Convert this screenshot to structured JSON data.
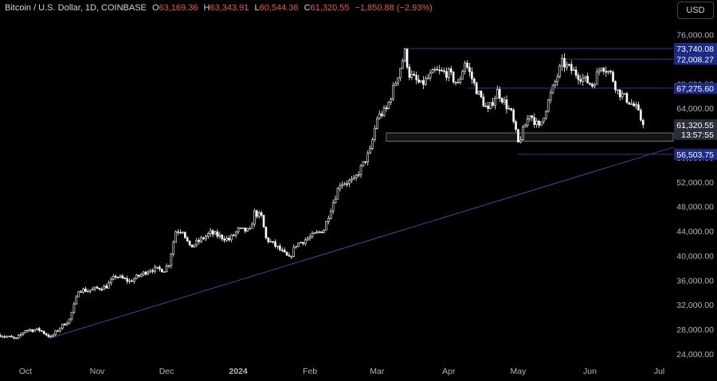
{
  "header": {
    "symbol": "Bitcoin / U.S. Dollar, 1D, COINBASE",
    "o_label": "O",
    "o_value": "63,169.36",
    "h_label": "H",
    "h_value": "63,343.91",
    "l_label": "L",
    "l_value": "60,544.36",
    "c_label": "C",
    "c_value": "61,320.55",
    "change": "−1,850.88 (−2.93%)"
  },
  "currency_button": "USD",
  "chart_data": {
    "type": "candlestick",
    "title": "Bitcoin / U.S. Dollar, 1D, COINBASE",
    "y_axis": {
      "side": "right",
      "ticks": [
        24000,
        28000,
        32000,
        36000,
        40000,
        44000,
        48000,
        52000,
        56000,
        60000,
        64000,
        68000,
        72000,
        76000
      ],
      "tick_labels": [
        "24,000.00",
        "28,000.00",
        "32,000.00",
        "36,000.00",
        "40,000.00",
        "44,000.00",
        "48,000.00",
        "52,000.00",
        "56,000.00",
        "60,000.00",
        "64,000.00",
        "68,000.00",
        "72,000.00",
        "76,000.00"
      ],
      "range": [
        22300,
        78800
      ]
    },
    "x_axis": {
      "range": [
        "2023-09-20",
        "2024-07-07"
      ],
      "ticks": [
        {
          "date": "2023-10-01",
          "label": "Oct",
          "bold": false
        },
        {
          "date": "2023-11-01",
          "label": "Nov",
          "bold": false
        },
        {
          "date": "2023-12-01",
          "label": "Dec",
          "bold": false
        },
        {
          "date": "2024-01-01",
          "label": "2024",
          "bold": true
        },
        {
          "date": "2024-02-01",
          "label": "Feb",
          "bold": false
        },
        {
          "date": "2024-03-01",
          "label": "Mar",
          "bold": false
        },
        {
          "date": "2024-04-01",
          "label": "Apr",
          "bold": false
        },
        {
          "date": "2024-05-01",
          "label": "May",
          "bold": false
        },
        {
          "date": "2024-06-01",
          "label": "Jun",
          "bold": false
        },
        {
          "date": "2024-07-01",
          "label": "Jul",
          "bold": false
        }
      ]
    },
    "price_path": [
      [
        "2023-09-20",
        27100
      ],
      [
        "2023-09-27",
        26400
      ],
      [
        "2023-10-01",
        27900
      ],
      [
        "2023-10-07",
        27900
      ],
      [
        "2023-10-12",
        26700
      ],
      [
        "2023-10-16",
        28300
      ],
      [
        "2023-10-20",
        29600
      ],
      [
        "2023-10-23",
        33000
      ],
      [
        "2023-10-24",
        34500
      ],
      [
        "2023-10-28",
        34300
      ],
      [
        "2023-11-05",
        35000
      ],
      [
        "2023-11-09",
        36700
      ],
      [
        "2023-11-15",
        35800
      ],
      [
        "2023-11-24",
        37800
      ],
      [
        "2023-11-30",
        37700
      ],
      [
        "2023-12-02",
        38700
      ],
      [
        "2023-12-05",
        44000
      ],
      [
        "2023-12-08",
        44200
      ],
      [
        "2023-12-11",
        41300
      ],
      [
        "2023-12-20",
        43700
      ],
      [
        "2023-12-28",
        42600
      ],
      [
        "2024-01-01",
        44200
      ],
      [
        "2024-01-06",
        44000
      ],
      [
        "2024-01-08",
        47000
      ],
      [
        "2024-01-11",
        46300
      ],
      [
        "2024-01-13",
        42800
      ],
      [
        "2024-01-18",
        41300
      ],
      [
        "2024-01-23",
        39500
      ],
      [
        "2024-01-26",
        41800
      ],
      [
        "2024-02-01",
        43000
      ],
      [
        "2024-02-07",
        44300
      ],
      [
        "2024-02-10",
        47700
      ],
      [
        "2024-02-14",
        51800
      ],
      [
        "2024-02-20",
        52200
      ],
      [
        "2024-02-27",
        57000
      ],
      [
        "2024-03-01",
        62500
      ],
      [
        "2024-03-05",
        63800
      ],
      [
        "2024-03-09",
        68300
      ],
      [
        "2024-03-13",
        73100
      ],
      [
        "2024-03-15",
        69500
      ],
      [
        "2024-03-20",
        67800
      ],
      [
        "2024-03-26",
        70000
      ],
      [
        "2024-04-01",
        69700
      ],
      [
        "2024-04-05",
        67800
      ],
      [
        "2024-04-08",
        71600
      ],
      [
        "2024-04-13",
        67000
      ],
      [
        "2024-04-18",
        63500
      ],
      [
        "2024-04-22",
        66800
      ],
      [
        "2024-04-28",
        63200
      ],
      [
        "2024-05-01",
        58300
      ],
      [
        "2024-05-06",
        63200
      ],
      [
        "2024-05-10",
        60800
      ],
      [
        "2024-05-15",
        66200
      ],
      [
        "2024-05-20",
        71400
      ],
      [
        "2024-05-27",
        69400
      ],
      [
        "2024-06-02",
        67800
      ],
      [
        "2024-06-06",
        71100
      ],
      [
        "2024-06-10",
        69600
      ],
      [
        "2024-06-13",
        66800
      ],
      [
        "2024-06-18",
        65100
      ],
      [
        "2024-06-21",
        64000
      ],
      [
        "2024-06-24",
        61320
      ]
    ],
    "annotations": {
      "horizontal_levels": [
        {
          "price": 73740.08,
          "from": "2024-03-14",
          "label": "73,740.08",
          "style": "blue"
        },
        {
          "price": 72008.27,
          "from": "2024-05-21",
          "label": "72,008.27",
          "style": "blue"
        },
        {
          "price": 67275.6,
          "from": "2024-04-09",
          "label": "67,275.60",
          "style": "blue"
        },
        {
          "price": 56503.75,
          "from": "2024-05-01",
          "label": "56,503.75",
          "style": "blue"
        }
      ],
      "zone": {
        "from": "2024-03-05",
        "top": 60000,
        "bottom": 58650
      },
      "trendline": {
        "points": [
          [
            "2023-10-11",
            26500
          ],
          [
            "2024-01-23",
            38500
          ]
        ],
        "extend_to": "2024-07-07"
      },
      "last_price_label": "61,320.55",
      "countdown_label": "13:57:55"
    }
  },
  "colors": {
    "background": "#000000",
    "candle_up": "#ffffff",
    "candle_down": "#ffffff",
    "level_line": "#2e3a8c",
    "level_label_bg": "#1c2a8a",
    "trendline": "#3a4c9a",
    "axis_text": "#b2b5be",
    "header_change": "#ef5350"
  }
}
